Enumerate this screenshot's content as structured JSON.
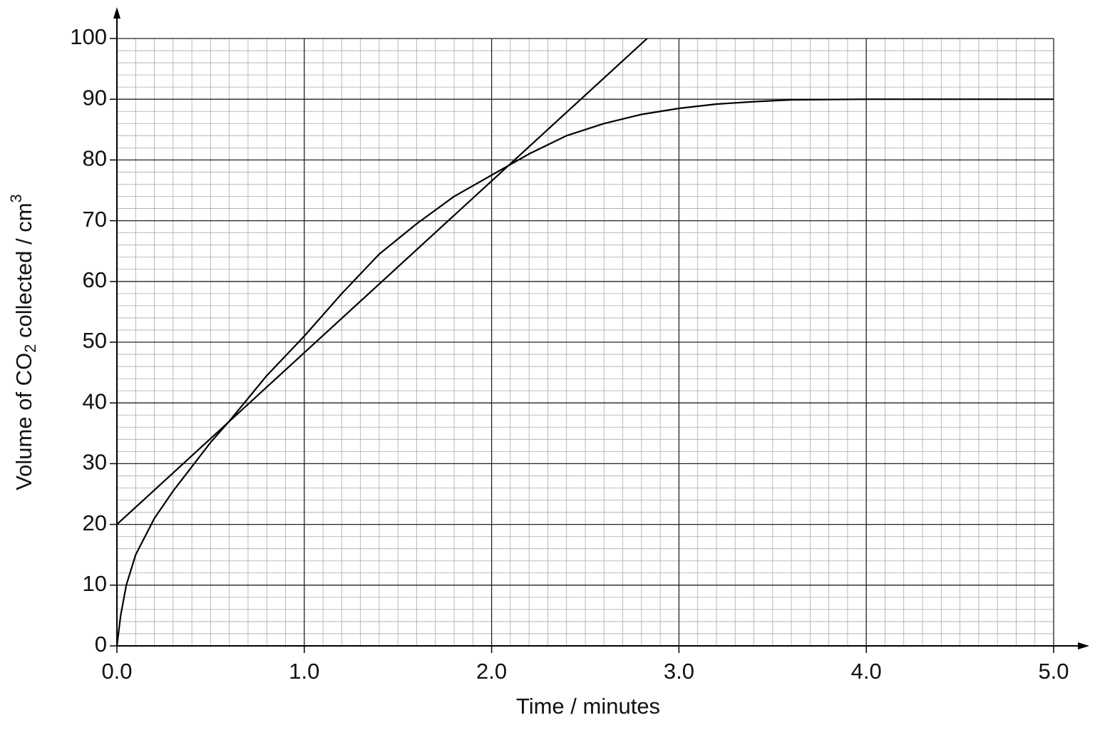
{
  "chart_data": {
    "type": "line",
    "xlabel": "Time / minutes",
    "ylabel_parts": [
      "Volume of CO",
      "2",
      " collected / cm",
      "3"
    ],
    "xlim": [
      0,
      5
    ],
    "ylim": [
      0,
      100
    ],
    "xticks": [
      {
        "value": 0,
        "label": "0.0"
      },
      {
        "value": 1,
        "label": "1.0"
      },
      {
        "value": 2,
        "label": "2.0"
      },
      {
        "value": 3,
        "label": "3.0"
      },
      {
        "value": 4,
        "label": "4.0"
      },
      {
        "value": 5,
        "label": "5.0"
      }
    ],
    "yticks": [
      0,
      10,
      20,
      30,
      40,
      50,
      60,
      70,
      80,
      90,
      100
    ],
    "grid": true,
    "series": [
      {
        "color": "#000000",
        "x": [
          0,
          0.02,
          0.05,
          0.1,
          0.2,
          0.3,
          0.4,
          0.5,
          0.6,
          0.8,
          1.0,
          1.2,
          1.4,
          1.6,
          1.8,
          2.0,
          2.2,
          2.4,
          2.6,
          2.8,
          3.0,
          3.2,
          3.4,
          3.6,
          4.0,
          5.0
        ],
        "values": [
          0,
          5,
          10,
          15,
          21,
          25.5,
          29.5,
          33.5,
          37,
          44.5,
          51,
          58,
          64.5,
          69.5,
          74,
          77.5,
          81,
          84,
          86,
          87.5,
          88.5,
          89.2,
          89.6,
          89.9,
          90,
          90
        ]
      },
      {
        "color": "#000000",
        "x": [
          0,
          2.83
        ],
        "values": [
          20,
          100
        ]
      }
    ]
  }
}
